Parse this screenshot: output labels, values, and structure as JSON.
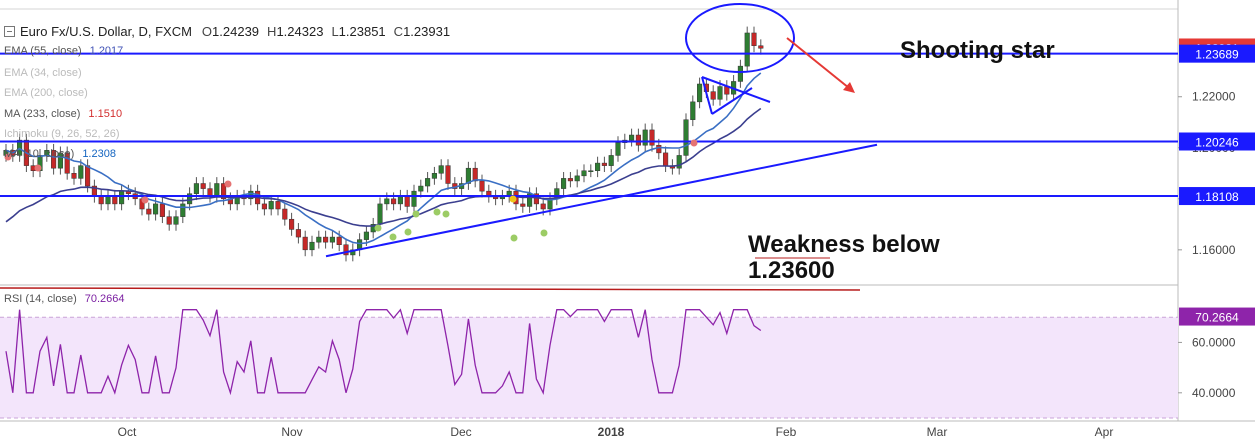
{
  "header": {
    "symbol": "Euro Fx/U.S. Dollar, D, FXCM",
    "open_label": "O",
    "open": "1.24239",
    "high_label": "H",
    "high": "1.24323",
    "low_label": "L",
    "low": "1.23851",
    "close_label": "C",
    "close": "1.23931"
  },
  "indicators": [
    {
      "label": "EMA (55, close)",
      "value": "1.2017",
      "color": "#3f51b5",
      "faded": false
    },
    {
      "label": "EMA (34, close)",
      "value": "",
      "color": "#bbbbbb",
      "faded": true
    },
    {
      "label": "EMA (200, close)",
      "value": "",
      "color": "#bbbbbb",
      "faded": true
    },
    {
      "label": "MA (233, close)",
      "value": "1.1510",
      "color": "#d32f2f",
      "faded": false
    },
    {
      "label": "Ichimoku (9, 26, 52, 26)",
      "value": "",
      "color": "#bbbbbb",
      "faded": true
    },
    {
      "label": "MA (10, close)",
      "value": "1.2308",
      "color": "#1565c0",
      "faded": false
    }
  ],
  "annotations": {
    "shooting_star": "Shooting star",
    "weakness_line1": "Weakness below",
    "weakness_line2": "1.23600"
  },
  "rsi": {
    "label": "RSI (14, close)",
    "value": "70.2664"
  },
  "chart_data": {
    "type": "candlestick",
    "symbol": "EUR/USD",
    "timeframe": "D",
    "price_axis": {
      "ylim": [
        1.147,
        1.254
      ],
      "ticks": [
        "1.22000",
        "1.20000",
        "1.18000",
        "1.16000"
      ]
    },
    "price_labels": [
      {
        "text": "1.23931",
        "value": 1.23931,
        "color": "#e53935"
      },
      {
        "text": "1.23689",
        "value": 1.23689,
        "color": "#1a1aff"
      },
      {
        "text": "1.20246",
        "value": 1.20246,
        "color": "#1a1aff"
      },
      {
        "text": "1.18108",
        "value": 1.18108,
        "color": "#1a1aff"
      }
    ],
    "horizontal_levels": [
      1.23689,
      1.20246,
      1.18108
    ],
    "x_labels": [
      "Oct",
      "Nov",
      "Dec",
      "2018",
      "Feb",
      "Mar",
      "Apr"
    ],
    "rsi_axis": {
      "ylim": [
        30,
        82
      ],
      "ticks": [
        "60.0000",
        "40.0000"
      ],
      "bands": [
        70,
        30
      ]
    },
    "closes": [
      1.199,
      1.197,
      1.203,
      1.193,
      1.191,
      1.197,
      1.199,
      1.192,
      1.198,
      1.19,
      1.188,
      1.193,
      1.185,
      1.181,
      1.178,
      1.181,
      1.178,
      1.183,
      1.182,
      1.18,
      1.176,
      1.174,
      1.178,
      1.173,
      1.17,
      1.173,
      1.178,
      1.182,
      1.186,
      1.184,
      1.181,
      1.186,
      1.18,
      1.178,
      1.181,
      1.18,
      1.183,
      1.178,
      1.176,
      1.179,
      1.176,
      1.172,
      1.168,
      1.165,
      1.16,
      1.163,
      1.165,
      1.163,
      1.165,
      1.162,
      1.158,
      1.16,
      1.164,
      1.167,
      1.17,
      1.178,
      1.18,
      1.178,
      1.181,
      1.177,
      1.183,
      1.185,
      1.188,
      1.19,
      1.193,
      1.186,
      1.184,
      1.186,
      1.192,
      1.187,
      1.183,
      1.181,
      1.18,
      1.181,
      1.183,
      1.178,
      1.177,
      1.182,
      1.178,
      1.176,
      1.18,
      1.184,
      1.188,
      1.187,
      1.189,
      1.191,
      1.191,
      1.194,
      1.193,
      1.197,
      1.202,
      1.203,
      1.205,
      1.201,
      1.207,
      1.201,
      1.198,
      1.193,
      1.192,
      1.197,
      1.211,
      1.218,
      1.225,
      1.222,
      1.219,
      1.224,
      1.221,
      1.226,
      1.232,
      1.245,
      1.24,
      1.239
    ]
  }
}
